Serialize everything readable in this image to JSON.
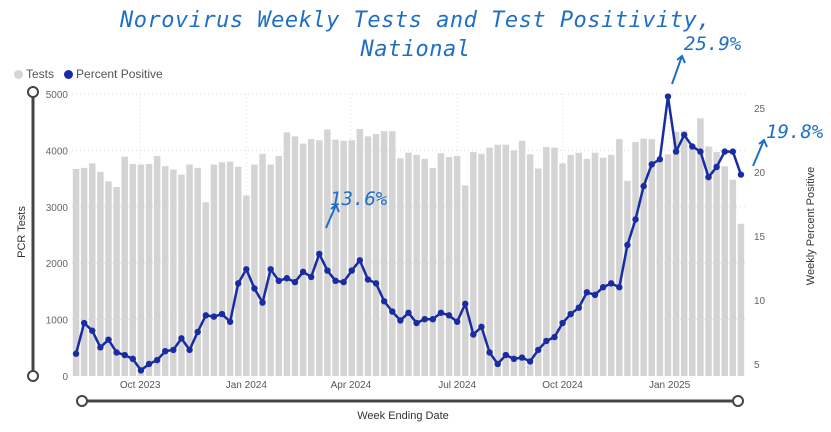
{
  "chart_data": {
    "type": "bar+line",
    "title_line1": "Norovirus Weekly Tests and Test Positivity,",
    "title_line2": "National",
    "xlabel": "Week Ending Date",
    "ylabel_left": "PCR Tests",
    "ylabel_right": "Weekly Percent Positive",
    "legend": [
      {
        "name": "Tests",
        "color": "#d4d4d4"
      },
      {
        "name": "Percent Positive",
        "color": "#1a2ca3"
      }
    ],
    "legend_position": "top-left",
    "ylim_left": [
      0,
      5000
    ],
    "yticks_left": [
      "0",
      "1000",
      "2000",
      "3000",
      "4000",
      "5000"
    ],
    "ylim_right": [
      4.06,
      26.1
    ],
    "yticks_right": [
      "5",
      "10",
      "15",
      "20",
      "25"
    ],
    "x_ticks": [
      {
        "label": "Oct 2023",
        "week": 8.4
      },
      {
        "label": "Jan 2024",
        "week": 21.5
      },
      {
        "label": "Apr 2024",
        "week": 34.4
      },
      {
        "label": "Jul 2024",
        "week": 47.5
      },
      {
        "label": "Oct 2024",
        "week": 60.5
      },
      {
        "label": "Jan 2025",
        "week": 73.7
      }
    ],
    "series": [
      {
        "name": "Tests",
        "type": "bar",
        "values": [
          3670,
          3690,
          3770,
          3620,
          3450,
          3350,
          3890,
          3760,
          3750,
          3760,
          3900,
          3720,
          3660,
          3570,
          3750,
          3690,
          3080,
          3750,
          3790,
          3800,
          3710,
          3200,
          3750,
          3940,
          3750,
          3900,
          4320,
          4250,
          4120,
          4200,
          4180,
          4370,
          4190,
          4170,
          4180,
          4380,
          4250,
          4290,
          4340,
          4340,
          3860,
          3960,
          3920,
          3850,
          3690,
          3950,
          3880,
          3900,
          3380,
          3970,
          3940,
          4050,
          4100,
          4100,
          4000,
          4170,
          3930,
          3680,
          4060,
          4050,
          3770,
          3920,
          3960,
          3850,
          3960,
          3870,
          3920,
          4200,
          3460,
          4150,
          4210,
          4200,
          3830,
          3930,
          4330,
          4350,
          4100,
          4570,
          4070,
          3970,
          3720,
          3480,
          2700
        ]
      },
      {
        "name": "Percent Positive",
        "type": "line",
        "values": [
          5.8,
          8.2,
          7.6,
          6.3,
          6.9,
          5.9,
          5.7,
          5.4,
          4.5,
          5.0,
          5.3,
          6.0,
          6.1,
          7.0,
          6.1,
          7.5,
          8.8,
          8.7,
          8.9,
          8.3,
          11.3,
          12.4,
          10.9,
          9.8,
          12.4,
          11.5,
          11.7,
          11.4,
          12.2,
          11.8,
          13.6,
          12.3,
          11.5,
          11.4,
          12.3,
          13.1,
          11.6,
          11.3,
          9.9,
          9.1,
          8.4,
          9.0,
          8.2,
          8.5,
          8.5,
          9.0,
          8.8,
          8.3,
          9.7,
          7.3,
          7.9,
          5.9,
          5.0,
          5.7,
          5.4,
          5.5,
          5.2,
          6.1,
          6.8,
          7.1,
          8.2,
          8.9,
          9.4,
          10.6,
          10.4,
          11.0,
          11.3,
          11.0,
          14.3,
          16.3,
          18.9,
          20.6,
          21.0,
          25.9,
          21.6,
          22.9,
          22.0,
          21.6,
          19.6,
          20.4,
          21.6,
          21.6,
          19.8
        ]
      }
    ],
    "annotations": [
      "13.6%",
      "25.9%",
      "19.8%"
    ]
  }
}
